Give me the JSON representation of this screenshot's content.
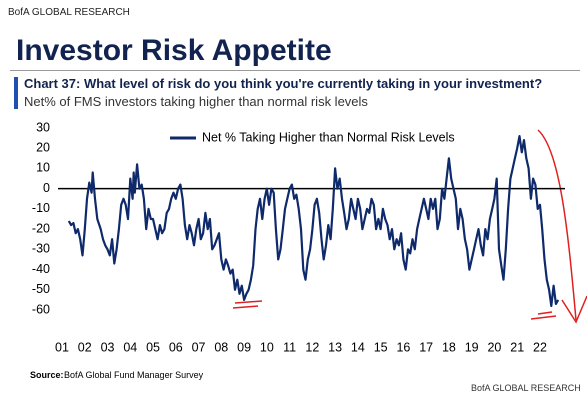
{
  "brand": "BofA GLOBAL RESEARCH",
  "header_title": "Investor Risk Appetite",
  "chart_data": {
    "type": "line",
    "title": "Chart 37: What level of risk do you think you're currently taking in your investment?",
    "subtitle": "Net% of FMS investors taking higher than normal risk levels",
    "x": [
      2001.3,
      2001.4,
      2001.5,
      2001.6,
      2001.7,
      2001.8,
      2001.9,
      2002.0,
      2002.1,
      2002.2,
      2002.3,
      2002.35,
      2002.45,
      2002.55,
      2002.7,
      2002.8,
      2002.9,
      2003.0,
      2003.1,
      2003.2,
      2003.3,
      2003.4,
      2003.5,
      2003.6,
      2003.7,
      2003.8,
      2003.9,
      2004.0,
      2004.1,
      2004.15,
      2004.2,
      2004.3,
      2004.4,
      2004.5,
      2004.6,
      2004.7,
      2004.8,
      2004.9,
      2005.0,
      2005.1,
      2005.2,
      2005.3,
      2005.4,
      2005.5,
      2005.6,
      2005.7,
      2005.8,
      2005.9,
      2006.0,
      2006.1,
      2006.2,
      2006.3,
      2006.4,
      2006.5,
      2006.6,
      2006.7,
      2006.8,
      2006.9,
      2007.0,
      2007.1,
      2007.2,
      2007.3,
      2007.4,
      2007.5,
      2007.6,
      2007.7,
      2007.8,
      2007.9,
      2008.0,
      2008.1,
      2008.2,
      2008.3,
      2008.4,
      2008.5,
      2008.6,
      2008.7,
      2008.8,
      2008.9,
      2009.0,
      2009.1,
      2009.2,
      2009.3,
      2009.4,
      2009.5,
      2009.6,
      2009.7,
      2009.8,
      2009.9,
      2010.0,
      2010.1,
      2010.2,
      2010.3,
      2010.4,
      2010.5,
      2010.6,
      2010.7,
      2010.8,
      2010.9,
      2011.0,
      2011.1,
      2011.2,
      2011.3,
      2011.4,
      2011.5,
      2011.6,
      2011.7,
      2011.8,
      2011.9,
      2012.0,
      2012.1,
      2012.2,
      2012.3,
      2012.4,
      2012.5,
      2012.6,
      2012.7,
      2012.8,
      2012.9,
      2013.0,
      2013.1,
      2013.2,
      2013.3,
      2013.4,
      2013.5,
      2013.6,
      2013.7,
      2013.8,
      2013.9,
      2014.0,
      2014.1,
      2014.2,
      2014.3,
      2014.4,
      2014.5,
      2014.6,
      2014.7,
      2014.8,
      2014.9,
      2015.0,
      2015.1,
      2015.2,
      2015.3,
      2015.4,
      2015.5,
      2015.6,
      2015.7,
      2015.8,
      2015.9,
      2016.0,
      2016.1,
      2016.2,
      2016.3,
      2016.4,
      2016.5,
      2016.6,
      2016.7,
      2016.8,
      2016.9,
      2017.0,
      2017.1,
      2017.2,
      2017.3,
      2017.4,
      2017.5,
      2017.6,
      2017.7,
      2017.8,
      2017.9,
      2018.0,
      2018.1,
      2018.2,
      2018.3,
      2018.4,
      2018.5,
      2018.6,
      2018.7,
      2018.8,
      2018.9,
      2019.0,
      2019.1,
      2019.2,
      2019.3,
      2019.4,
      2019.5,
      2019.6,
      2019.7,
      2019.8,
      2019.9,
      2020.0,
      2020.1,
      2020.2,
      2020.3,
      2020.4,
      2020.5,
      2020.6,
      2020.7,
      2020.8,
      2020.9,
      2021.0,
      2021.1,
      2021.2,
      2021.3,
      2021.4,
      2021.5,
      2021.6,
      2021.7,
      2021.8,
      2021.9,
      2022.0,
      2022.1,
      2022.2,
      2022.3,
      2022.4,
      2022.5,
      2022.6,
      2022.7,
      2022.8
    ],
    "series": [
      {
        "name": "Net % Taking Higher than Normal Risk Levels",
        "color": "#0f2a6b",
        "values": [
          -16,
          -18,
          -17,
          -22,
          -20,
          -25,
          -33,
          -20,
          -5,
          3,
          -2,
          8,
          -5,
          -15,
          -20,
          -25,
          -28,
          -30,
          -33,
          -25,
          -37,
          -30,
          -20,
          -8,
          -5,
          -8,
          -15,
          5,
          -5,
          8,
          -2,
          12,
          0,
          2,
          -5,
          -20,
          -10,
          -15,
          -15,
          -20,
          -25,
          -18,
          -22,
          -20,
          -12,
          -10,
          -5,
          -2,
          -5,
          0,
          2,
          -5,
          -18,
          -25,
          -18,
          -22,
          -28,
          -20,
          -15,
          -25,
          -22,
          -12,
          -20,
          -15,
          -30,
          -28,
          -25,
          -22,
          -35,
          -40,
          -35,
          -38,
          -42,
          -40,
          -50,
          -45,
          -52,
          -48,
          -55,
          -52,
          -50,
          -45,
          -38,
          -20,
          -10,
          -5,
          -15,
          -5,
          0,
          -8,
          0,
          -2,
          -20,
          -35,
          -30,
          -20,
          -10,
          -5,
          0,
          2,
          -5,
          -3,
          -10,
          -20,
          -40,
          -45,
          -35,
          -30,
          -20,
          -8,
          -5,
          -12,
          -25,
          -35,
          -28,
          -18,
          -25,
          -10,
          10,
          0,
          5,
          -5,
          -12,
          -20,
          -15,
          -5,
          -10,
          -15,
          -5,
          -10,
          -20,
          -15,
          -10,
          -12,
          -5,
          -8,
          -20,
          -15,
          -20,
          -10,
          -15,
          -18,
          -25,
          -20,
          -30,
          -25,
          -28,
          -22,
          -35,
          -40,
          -30,
          -32,
          -25,
          -30,
          -20,
          -15,
          -10,
          -5,
          -10,
          -15,
          -5,
          -10,
          -5,
          -20,
          -15,
          0,
          -5,
          5,
          15,
          5,
          0,
          -5,
          -20,
          -10,
          -15,
          -25,
          -30,
          -40,
          -35,
          -30,
          -25,
          -20,
          -28,
          -33,
          -20,
          -25,
          -15,
          -10,
          -5,
          5,
          -30,
          -38,
          -45,
          -30,
          -10,
          5,
          10,
          15,
          20,
          26,
          18,
          24,
          15,
          10,
          -5,
          5,
          2,
          -10,
          -8,
          -20,
          -35,
          -45,
          -50,
          -58,
          -48,
          -57,
          -55
        ]
      }
    ],
    "xlim": [
      2001,
      2023.1
    ],
    "xticks": [
      {
        "value": 2001,
        "label": "01"
      },
      {
        "value": 2002,
        "label": "02"
      },
      {
        "value": 2003,
        "label": "03"
      },
      {
        "value": 2004,
        "label": "04"
      },
      {
        "value": 2005,
        "label": "05"
      },
      {
        "value": 2006,
        "label": "06"
      },
      {
        "value": 2007,
        "label": "07"
      },
      {
        "value": 2008,
        "label": "08"
      },
      {
        "value": 2009,
        "label": "09"
      },
      {
        "value": 2010,
        "label": "10"
      },
      {
        "value": 2011,
        "label": "11"
      },
      {
        "value": 2012,
        "label": "12"
      },
      {
        "value": 2013,
        "label": "13"
      },
      {
        "value": 2014,
        "label": "14"
      },
      {
        "value": 2015,
        "label": "15"
      },
      {
        "value": 2016,
        "label": "16"
      },
      {
        "value": 2017,
        "label": "17"
      },
      {
        "value": 2018,
        "label": "18"
      },
      {
        "value": 2019,
        "label": "19"
      },
      {
        "value": 2020,
        "label": "20"
      },
      {
        "value": 2021,
        "label": "21"
      },
      {
        "value": 2022,
        "label": "22"
      }
    ],
    "ylim": [
      -60,
      30
    ],
    "yticks": [
      30,
      20,
      10,
      0,
      -10,
      -20,
      -30,
      -40,
      -50,
      -60
    ],
    "grid": false
  },
  "source_label": "Source:",
  "source": "BofA Global Fund Manager Survey",
  "footer": "BofA GLOBAL RESEARCH"
}
